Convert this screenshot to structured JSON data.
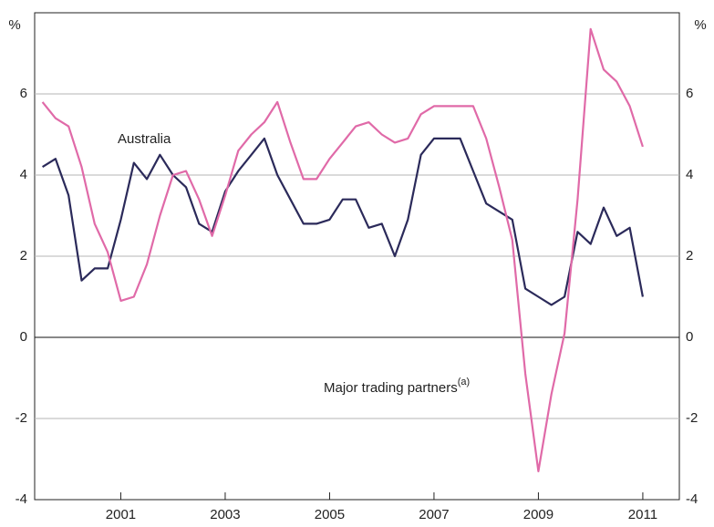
{
  "chart_data": {
    "type": "line",
    "y_unit_left": "%",
    "y_unit_right": "%",
    "x": [
      1999.5,
      1999.75,
      2000,
      2000.25,
      2000.5,
      2000.75,
      2001,
      2001.25,
      2001.5,
      2001.75,
      2002,
      2002.25,
      2002.5,
      2002.75,
      2003,
      2003.25,
      2003.5,
      2003.75,
      2004,
      2004.25,
      2004.5,
      2004.75,
      2005,
      2005.25,
      2005.5,
      2005.75,
      2006,
      2006.25,
      2006.5,
      2006.75,
      2007,
      2007.25,
      2007.5,
      2007.75,
      2008,
      2008.25,
      2008.5,
      2008.75,
      2009,
      2009.25,
      2009.5,
      2009.75,
      2010,
      2010.25,
      2010.5,
      2010.75,
      2011
    ],
    "series": [
      {
        "name": "Australia",
        "color": "#2b2a5a",
        "values": [
          4.2,
          4.4,
          3.5,
          1.4,
          1.7,
          1.7,
          2.9,
          4.3,
          3.9,
          4.5,
          4.0,
          3.7,
          2.8,
          2.6,
          3.6,
          4.1,
          4.5,
          4.9,
          4.0,
          3.4,
          2.8,
          2.8,
          2.9,
          3.4,
          3.4,
          2.7,
          2.8,
          2.0,
          2.9,
          4.5,
          4.9,
          4.9,
          4.9,
          4.1,
          3.3,
          3.1,
          2.9,
          1.2,
          1.0,
          0.8,
          1.0,
          2.6,
          2.3,
          3.2,
          2.5,
          2.7,
          1.0
        ]
      },
      {
        "name": "Major trading partners",
        "name_sup": "(a)",
        "color": "#e06aa8",
        "values": [
          5.8,
          5.4,
          5.2,
          4.2,
          2.8,
          2.1,
          0.9,
          1.0,
          1.8,
          3.0,
          4.0,
          4.1,
          3.4,
          2.5,
          3.5,
          4.6,
          5.0,
          5.3,
          5.8,
          4.8,
          3.9,
          3.9,
          4.4,
          4.8,
          5.2,
          5.3,
          5.0,
          4.8,
          4.9,
          5.5,
          5.7,
          5.7,
          5.7,
          5.7,
          4.9,
          3.7,
          2.4,
          -0.9,
          -3.3,
          -1.4,
          0.1,
          3.4,
          7.6,
          6.6,
          6.3,
          5.7,
          4.7
        ]
      }
    ],
    "xlim": [
      1999.35,
      2011.7
    ],
    "xticks": [
      2001,
      2003,
      2005,
      2007,
      2009,
      2011
    ],
    "ylim": [
      -4,
      8
    ],
    "yticks": [
      -4,
      -2,
      0,
      2,
      4,
      6
    ],
    "grid": true
  }
}
